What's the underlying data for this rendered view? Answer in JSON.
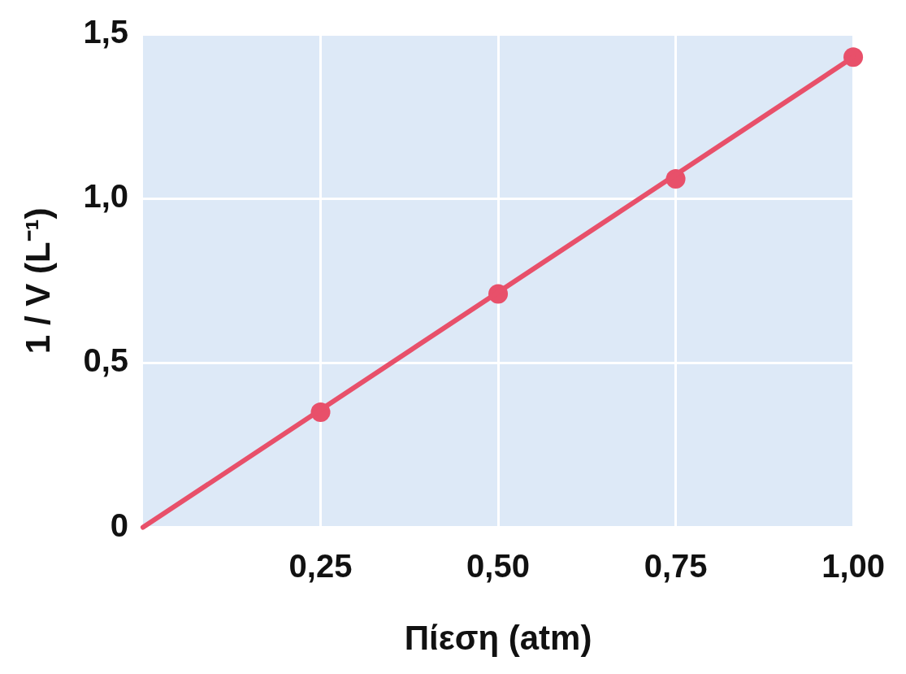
{
  "chart_data": {
    "type": "scatter",
    "xlabel": "Πίεση (atm)",
    "ylabel": "1 / V (L⁻¹)",
    "xlim": [
      0,
      1
    ],
    "ylim": [
      0,
      1.5
    ],
    "xticks": [
      {
        "value": 0.25,
        "label": "0,25"
      },
      {
        "value": 0.5,
        "label": "0,50"
      },
      {
        "value": 0.75,
        "label": "0,75"
      },
      {
        "value": 1,
        "label": "1,00"
      }
    ],
    "yticks": [
      {
        "value": 0,
        "label": "0"
      },
      {
        "value": 0.5,
        "label": "0,5"
      },
      {
        "value": 1,
        "label": "1,0"
      },
      {
        "value": 1.5,
        "label": "1,5"
      }
    ],
    "series": [
      {
        "type": "line",
        "color": "#e8506a",
        "x": [
          0,
          1
        ],
        "values": [
          0,
          1.43
        ],
        "marker": "none"
      },
      {
        "color": "#e8506a",
        "x": [
          0.25,
          0.5,
          0.75,
          1
        ],
        "values": [
          0.35,
          0.71,
          1.06,
          1.43
        ],
        "marker": "circle"
      }
    ],
    "grid": true,
    "legend": false
  }
}
